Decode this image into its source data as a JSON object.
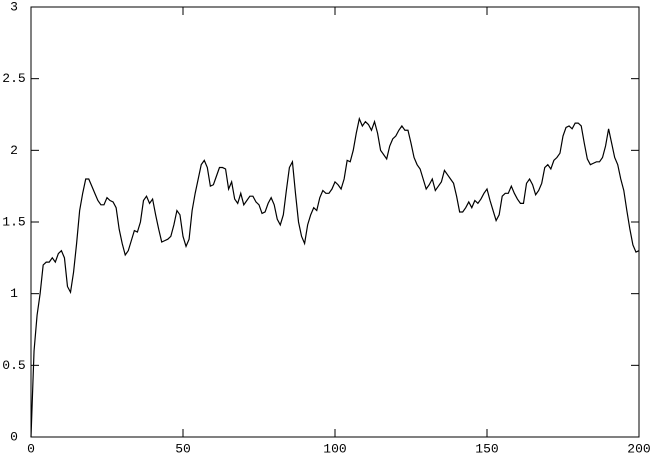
{
  "chart_data": {
    "type": "line",
    "color": "#000000",
    "x": [
      0,
      1,
      2,
      3,
      4,
      5,
      6,
      7,
      8,
      9,
      10,
      11,
      12,
      13,
      14,
      15,
      16,
      17,
      18,
      19,
      20,
      21,
      22,
      23,
      24,
      25,
      26,
      27,
      28,
      29,
      30,
      31,
      32,
      33,
      34,
      35,
      36,
      37,
      38,
      39,
      40,
      41,
      42,
      43,
      44,
      45,
      46,
      47,
      48,
      49,
      50,
      51,
      52,
      53,
      54,
      55,
      56,
      57,
      58,
      59,
      60,
      61,
      62,
      63,
      64,
      65,
      66,
      67,
      68,
      69,
      70,
      71,
      72,
      73,
      74,
      75,
      76,
      77,
      78,
      79,
      80,
      81,
      82,
      83,
      84,
      85,
      86,
      87,
      88,
      89,
      90,
      91,
      92,
      93,
      94,
      95,
      96,
      97,
      98,
      99,
      100,
      101,
      102,
      103,
      104,
      105,
      106,
      107,
      108,
      109,
      110,
      111,
      112,
      113,
      114,
      115,
      116,
      117,
      118,
      119,
      120,
      121,
      122,
      123,
      124,
      125,
      126,
      127,
      128,
      129,
      130,
      131,
      132,
      133,
      134,
      135,
      136,
      137,
      138,
      139,
      140,
      141,
      142,
      143,
      144,
      145,
      146,
      147,
      148,
      149,
      150,
      151,
      152,
      153,
      154,
      155,
      156,
      157,
      158,
      159,
      160,
      161,
      162,
      163,
      164,
      165,
      166,
      167,
      168,
      169,
      170,
      171,
      172,
      173,
      174,
      175,
      176,
      177,
      178,
      179,
      180,
      181,
      182,
      183,
      184,
      185,
      186,
      187,
      188,
      189,
      190,
      191,
      192,
      193,
      194,
      195,
      196,
      197,
      198,
      199,
      200
    ],
    "values": [
      0,
      0.6,
      0.85,
      1.0,
      1.2,
      1.22,
      1.22,
      1.25,
      1.22,
      1.28,
      1.3,
      1.25,
      1.05,
      1.01,
      1.15,
      1.35,
      1.58,
      1.7,
      1.8,
      1.8,
      1.75,
      1.7,
      1.65,
      1.62,
      1.62,
      1.67,
      1.65,
      1.64,
      1.6,
      1.45,
      1.35,
      1.27,
      1.3,
      1.37,
      1.44,
      1.43,
      1.5,
      1.65,
      1.68,
      1.63,
      1.66,
      1.55,
      1.45,
      1.36,
      1.37,
      1.38,
      1.4,
      1.48,
      1.58,
      1.55,
      1.4,
      1.33,
      1.38,
      1.58,
      1.7,
      1.8,
      1.9,
      1.93,
      1.88,
      1.75,
      1.76,
      1.82,
      1.88,
      1.88,
      1.87,
      1.73,
      1.78,
      1.66,
      1.63,
      1.7,
      1.62,
      1.65,
      1.68,
      1.68,
      1.64,
      1.62,
      1.56,
      1.57,
      1.63,
      1.67,
      1.62,
      1.52,
      1.48,
      1.55,
      1.72,
      1.88,
      1.92,
      1.7,
      1.5,
      1.4,
      1.35,
      1.48,
      1.55,
      1.6,
      1.58,
      1.67,
      1.72,
      1.7,
      1.7,
      1.73,
      1.78,
      1.76,
      1.73,
      1.8,
      1.93,
      1.92,
      2.0,
      2.12,
      2.22,
      2.17,
      2.2,
      2.18,
      2.14,
      2.2,
      2.12,
      2.0,
      1.97,
      1.94,
      2.03,
      2.08,
      2.1,
      2.14,
      2.17,
      2.14,
      2.14,
      2.05,
      1.95,
      1.9,
      1.87,
      1.8,
      1.73,
      1.76,
      1.8,
      1.72,
      1.75,
      1.78,
      1.86,
      1.83,
      1.8,
      1.77,
      1.68,
      1.57,
      1.57,
      1.6,
      1.64,
      1.6,
      1.65,
      1.63,
      1.66,
      1.7,
      1.73,
      1.65,
      1.58,
      1.51,
      1.55,
      1.68,
      1.7,
      1.7,
      1.75,
      1.7,
      1.66,
      1.63,
      1.63,
      1.77,
      1.8,
      1.76,
      1.69,
      1.72,
      1.77,
      1.88,
      1.9,
      1.87,
      1.93,
      1.95,
      1.98,
      2.1,
      2.16,
      2.17,
      2.15,
      2.19,
      2.19,
      2.17,
      2.05,
      1.94,
      1.9,
      1.91,
      1.92,
      1.92,
      1.95,
      2.03,
      2.15,
      2.05,
      1.95,
      1.9,
      1.8,
      1.72,
      1.58,
      1.45,
      1.34,
      1.29,
      1.3
    ],
    "xlim": [
      0,
      200
    ],
    "xticks": [
      0,
      50,
      100,
      150,
      200
    ],
    "ylim": [
      0,
      3
    ],
    "yticks": [
      0,
      0.5,
      1,
      1.5,
      2,
      2.5,
      3
    ]
  }
}
